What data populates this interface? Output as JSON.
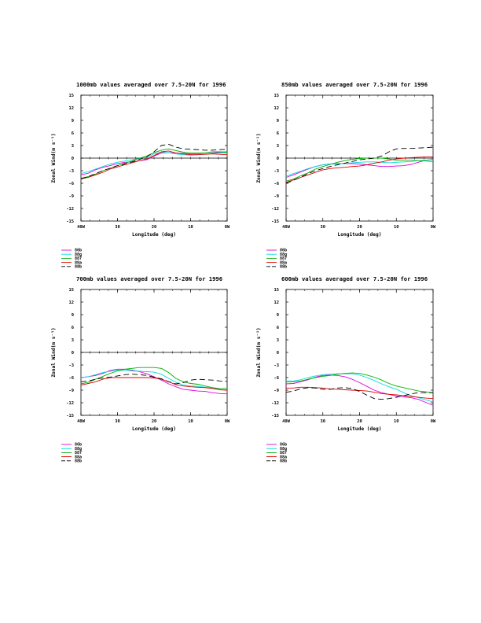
{
  "page": {
    "background": "#ffffff"
  },
  "series_styles": [
    {
      "name": "86b",
      "color": "#e000e0",
      "dash": ""
    },
    {
      "name": "88g",
      "color": "#00dddd",
      "dash": ""
    },
    {
      "name": "887",
      "color": "#00b000",
      "dash": ""
    },
    {
      "name": "88a",
      "color": "#e00000",
      "dash": ""
    },
    {
      "name": "88b",
      "color": "#000000",
      "dash": "7,4"
    }
  ],
  "chart_data": [
    {
      "type": "line",
      "title": "1000mb values averaged over 7.5-20N for 1996",
      "xlabel": "Longitude (deg)",
      "ylabel": "Zonal Wind(m s⁻¹)",
      "xlim": [
        -40,
        0
      ],
      "ylim": [
        -15,
        15
      ],
      "xticks": [
        -40,
        -30,
        -20,
        -10,
        0
      ],
      "xticklabels": [
        "40W",
        "30",
        "20",
        "10",
        "0W"
      ],
      "yticks": [
        -15,
        -12,
        -9,
        -6,
        -3,
        0,
        3,
        6,
        9,
        12,
        15
      ],
      "yticklabels": [
        "-15",
        "-12",
        "-9",
        "-6",
        "-3",
        "0",
        "3",
        "6",
        "9",
        "12",
        "15"
      ],
      "zero_line": true,
      "legend": [
        "86b",
        "88g",
        "887",
        "88a",
        "88b"
      ],
      "x": [
        -40,
        -38,
        -36,
        -34,
        -32,
        -30,
        -28,
        -26,
        -24,
        -22,
        -20,
        -18,
        -16,
        -14,
        -12,
        -10,
        -8,
        -6,
        -4,
        -2,
        0
      ],
      "series": [
        {
          "name": "86b",
          "values": [
            -4.0,
            -3.6,
            -2.8,
            -2.2,
            -1.8,
            -1.3,
            -1.0,
            -0.9,
            -0.6,
            -0.4,
            0.5,
            1.2,
            1.3,
            1.2,
            1.1,
            1.0,
            1.0,
            1.0,
            1.2,
            1.4,
            1.5
          ]
        },
        {
          "name": "88g",
          "values": [
            -3.7,
            -3.2,
            -2.6,
            -2.0,
            -1.4,
            -1.0,
            -0.7,
            -0.4,
            -0.1,
            0.2,
            1.0,
            1.4,
            1.3,
            1.0,
            0.8,
            0.7,
            0.8,
            1.0,
            1.1,
            1.2,
            1.2
          ]
        },
        {
          "name": "887",
          "values": [
            -4.8,
            -4.4,
            -3.8,
            -3.0,
            -2.4,
            -1.8,
            -1.2,
            -0.7,
            0.0,
            0.5,
            1.3,
            1.9,
            2.2,
            1.8,
            1.4,
            1.2,
            1.2,
            1.3,
            1.5,
            1.5,
            1.4
          ]
        },
        {
          "name": "88a",
          "values": [
            -4.9,
            -4.6,
            -4.0,
            -3.4,
            -2.6,
            -2.1,
            -1.6,
            -1.1,
            -0.6,
            -0.2,
            0.6,
            1.5,
            1.7,
            1.2,
            1.0,
            0.8,
            0.8,
            0.9,
            1.0,
            0.9,
            0.8
          ]
        },
        {
          "name": "88b",
          "values": [
            -5.0,
            -4.4,
            -3.7,
            -3.0,
            -2.4,
            -1.8,
            -1.4,
            -0.9,
            -0.3,
            0.3,
            1.5,
            3.0,
            3.3,
            2.6,
            2.2,
            2.1,
            2.0,
            1.9,
            1.9,
            2.0,
            2.1
          ]
        }
      ]
    },
    {
      "type": "line",
      "title": "850mb values averaged over 7.5-20N for 1996",
      "xlabel": "Longitude (deg)",
      "ylabel": "Zonal Wind(m s⁻¹)",
      "xlim": [
        -40,
        0
      ],
      "ylim": [
        -15,
        15
      ],
      "xticks": [
        -40,
        -30,
        -20,
        -10,
        0
      ],
      "xticklabels": [
        "40W",
        "30",
        "20",
        "10",
        "0W"
      ],
      "yticks": [
        -15,
        -12,
        -9,
        -6,
        -3,
        0,
        3,
        6,
        9,
        12,
        15
      ],
      "yticklabels": [
        "-15",
        "-12",
        "-9",
        "-6",
        "-3",
        "0",
        "3",
        "6",
        "9",
        "12",
        "15"
      ],
      "zero_line": true,
      "legend": [
        "86b",
        "88g",
        "887",
        "88a",
        "88b"
      ],
      "x": [
        -40,
        -38,
        -36,
        -34,
        -32,
        -30,
        -28,
        -26,
        -24,
        -22,
        -20,
        -18,
        -16,
        -14,
        -12,
        -10,
        -8,
        -6,
        -4,
        -2,
        0
      ],
      "series": [
        {
          "name": "86b",
          "values": [
            -4.6,
            -4.0,
            -3.3,
            -2.6,
            -2.0,
            -1.6,
            -1.4,
            -1.3,
            -1.3,
            -1.3,
            -1.4,
            -1.6,
            -1.8,
            -2.0,
            -2.0,
            -1.9,
            -1.8,
            -1.5,
            -1.0,
            -0.5,
            -0.3
          ]
        },
        {
          "name": "88g",
          "values": [
            -4.3,
            -3.7,
            -3.1,
            -2.5,
            -2.0,
            -1.6,
            -1.4,
            -1.4,
            -1.3,
            -1.1,
            -1.0,
            -0.9,
            -0.9,
            -1.0,
            -1.1,
            -1.0,
            -0.9,
            -0.8,
            -0.6,
            -0.5,
            -0.4
          ]
        },
        {
          "name": "887",
          "values": [
            -5.5,
            -5.0,
            -4.2,
            -3.5,
            -2.6,
            -2.0,
            -1.5,
            -1.0,
            -0.6,
            -0.3,
            -0.1,
            0.0,
            0.0,
            0.0,
            -0.2,
            -0.5,
            -0.5,
            -0.5,
            -0.6,
            -0.7,
            -0.8
          ]
        },
        {
          "name": "88a",
          "values": [
            -5.8,
            -5.2,
            -4.6,
            -4.0,
            -3.4,
            -2.8,
            -2.5,
            -2.3,
            -2.2,
            -2.0,
            -1.9,
            -1.6,
            -1.2,
            -0.9,
            -0.5,
            -0.2,
            0.0,
            0.1,
            0.2,
            0.3,
            0.3
          ]
        },
        {
          "name": "88b",
          "values": [
            -6.0,
            -5.3,
            -4.5,
            -3.7,
            -3.0,
            -2.5,
            -2.0,
            -1.6,
            -1.2,
            -0.8,
            -0.4,
            -0.2,
            0.0,
            0.5,
            1.5,
            2.2,
            2.3,
            2.3,
            2.4,
            2.5,
            2.6
          ]
        }
      ]
    },
    {
      "type": "line",
      "title": "700mb values averaged over 7.5-20N for 1996",
      "xlabel": "Longitude (deg)",
      "ylabel": "Zonal Wind(m s⁻¹)",
      "xlim": [
        -40,
        0
      ],
      "ylim": [
        -15,
        15
      ],
      "xticks": [
        -40,
        -30,
        -20,
        -10,
        0
      ],
      "xticklabels": [
        "40W",
        "30",
        "20",
        "10",
        "0W"
      ],
      "yticks": [
        -15,
        -12,
        -9,
        -6,
        -3,
        0,
        3,
        6,
        9,
        12,
        15
      ],
      "yticklabels": [
        "-15",
        "-12",
        "-9",
        "-6",
        "-3",
        "0",
        "3",
        "6",
        "9",
        "12",
        "15"
      ],
      "zero_line": true,
      "legend": [
        "86b",
        "88g",
        "887",
        "88a",
        "88b"
      ],
      "x": [
        -40,
        -38,
        -36,
        -34,
        -32,
        -30,
        -28,
        -26,
        -24,
        -22,
        -20,
        -18,
        -16,
        -14,
        -12,
        -10,
        -8,
        -6,
        -4,
        -2,
        0
      ],
      "series": [
        {
          "name": "86b",
          "values": [
            -6.0,
            -5.8,
            -5.5,
            -5.0,
            -4.3,
            -4.0,
            -4.0,
            -4.2,
            -4.6,
            -5.1,
            -5.8,
            -6.6,
            -7.5,
            -8.2,
            -8.8,
            -9.0,
            -9.2,
            -9.3,
            -9.6,
            -9.8,
            -9.9
          ]
        },
        {
          "name": "88g",
          "values": [
            -6.0,
            -5.8,
            -5.3,
            -4.8,
            -4.5,
            -4.2,
            -4.3,
            -4.4,
            -4.5,
            -4.6,
            -4.7,
            -5.2,
            -6.2,
            -7.1,
            -7.8,
            -8.0,
            -8.1,
            -8.3,
            -8.5,
            -8.6,
            -8.6
          ]
        },
        {
          "name": "887",
          "values": [
            -7.5,
            -7.1,
            -6.4,
            -5.7,
            -5.0,
            -4.4,
            -4.0,
            -3.8,
            -3.6,
            -3.6,
            -3.6,
            -3.8,
            -4.8,
            -6.2,
            -7.0,
            -7.4,
            -7.6,
            -8.0,
            -8.4,
            -8.6,
            -8.6
          ]
        },
        {
          "name": "88a",
          "values": [
            -7.8,
            -7.4,
            -7.0,
            -6.4,
            -6.0,
            -6.0,
            -6.0,
            -6.0,
            -6.0,
            -6.0,
            -6.1,
            -6.4,
            -7.0,
            -7.7,
            -8.0,
            -8.2,
            -8.3,
            -8.4,
            -8.6,
            -8.9,
            -9.0
          ]
        },
        {
          "name": "88b",
          "values": [
            -7.0,
            -6.8,
            -6.4,
            -6.1,
            -5.9,
            -5.6,
            -5.3,
            -5.2,
            -5.3,
            -5.5,
            -5.9,
            -6.3,
            -7.0,
            -7.5,
            -7.2,
            -6.6,
            -6.4,
            -6.5,
            -6.6,
            -6.8,
            -6.9
          ]
        }
      ]
    },
    {
      "type": "line",
      "title": "600mb values averaged over 7.5-20N for 1996",
      "xlabel": "Longitude (deg)",
      "ylabel": "Zonal Wind(m s⁻¹)",
      "xlim": [
        -40,
        0
      ],
      "ylim": [
        -15,
        15
      ],
      "xticks": [
        -40,
        -30,
        -20,
        -10,
        0
      ],
      "xticklabels": [
        "40W",
        "30",
        "20",
        "10",
        "0W"
      ],
      "yticks": [
        -15,
        -12,
        -9,
        -6,
        -3,
        0,
        3,
        6,
        9,
        12,
        15
      ],
      "yticklabels": [
        "-15",
        "-12",
        "-9",
        "-6",
        "-3",
        "0",
        "3",
        "6",
        "9",
        "12",
        "15"
      ],
      "zero_line": false,
      "legend": [
        "86b",
        "88g",
        "887",
        "88a",
        "88b"
      ],
      "x": [
        -40,
        -38,
        -36,
        -34,
        -32,
        -30,
        -28,
        -26,
        -24,
        -22,
        -20,
        -18,
        -16,
        -14,
        -12,
        -10,
        -8,
        -6,
        -4,
        -2,
        0
      ],
      "series": [
        {
          "name": "86b",
          "values": [
            -7.5,
            -7.4,
            -7.0,
            -6.5,
            -5.9,
            -5.5,
            -5.4,
            -5.5,
            -5.8,
            -6.4,
            -7.2,
            -8.1,
            -9.0,
            -9.6,
            -10.0,
            -10.4,
            -10.6,
            -10.8,
            -11.2,
            -11.9,
            -12.6
          ]
        },
        {
          "name": "88g",
          "values": [
            -6.8,
            -6.8,
            -6.5,
            -6.0,
            -5.6,
            -5.3,
            -5.2,
            -5.1,
            -5.1,
            -5.1,
            -5.4,
            -6.0,
            -6.7,
            -7.5,
            -8.2,
            -8.8,
            -9.6,
            -10.3,
            -10.8,
            -11.3,
            -11.8
          ]
        },
        {
          "name": "887",
          "values": [
            -7.0,
            -7.0,
            -6.8,
            -6.4,
            -6.0,
            -5.7,
            -5.5,
            -5.2,
            -5.0,
            -4.9,
            -5.0,
            -5.4,
            -5.9,
            -6.6,
            -7.4,
            -8.0,
            -8.4,
            -8.8,
            -9.2,
            -9.4,
            -9.6
          ]
        },
        {
          "name": "88a",
          "values": [
            -8.5,
            -8.5,
            -8.3,
            -8.3,
            -8.4,
            -8.5,
            -8.7,
            -8.8,
            -8.9,
            -9.0,
            -9.1,
            -9.2,
            -9.5,
            -9.8,
            -10.0,
            -10.1,
            -10.3,
            -10.5,
            -10.7,
            -10.9,
            -11.0
          ]
        },
        {
          "name": "88b",
          "values": [
            -9.5,
            -9.2,
            -8.7,
            -8.4,
            -8.5,
            -8.8,
            -8.8,
            -8.5,
            -8.4,
            -8.6,
            -9.3,
            -10.2,
            -11.0,
            -11.2,
            -11.0,
            -10.7,
            -10.3,
            -9.9,
            -9.6,
            -9.6,
            -9.6
          ]
        }
      ]
    }
  ]
}
